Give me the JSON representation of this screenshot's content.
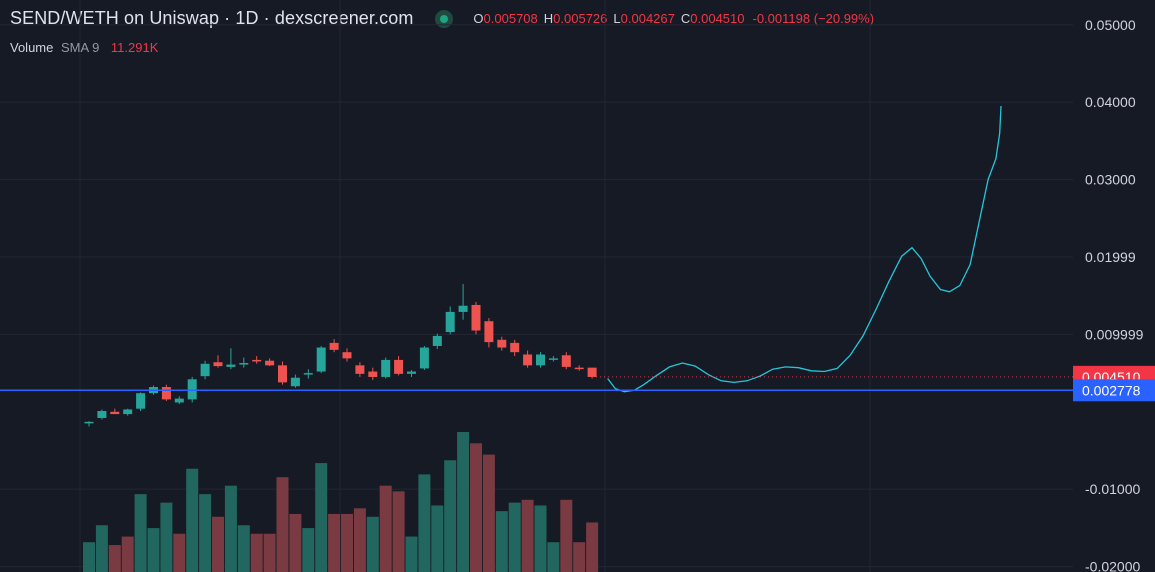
{
  "header": {
    "title": "SEND/WETH on Uniswap · 1D · dexscreener.com",
    "ohlc": {
      "open_label": "O",
      "open": "0.005708",
      "high_label": "H",
      "high": "0.005726",
      "low_label": "L",
      "low": "0.004267",
      "close_label": "C",
      "close": "0.004510",
      "change": "-0.001198 (−20.99%)"
    }
  },
  "volume_legend": {
    "title": "Volume",
    "sma": "SMA 9",
    "value": "11.291K"
  },
  "price_tags": [
    {
      "value": 0.00451,
      "label": "0.004510",
      "color": "#f23645"
    },
    {
      "value": 0.002778,
      "label": "0.002778",
      "color": "#2962ff"
    }
  ],
  "colors": {
    "background": "#161a25",
    "grid": "#232734",
    "up": "#26a69a",
    "down": "#ef5350",
    "vol_up": "#22675f",
    "vol_down": "#7a3a41",
    "line": "#26c6da",
    "blue_line": "#2962ff",
    "text": "#d1d4dc"
  },
  "chart_data": {
    "type": "candlestick",
    "title": "SEND/WETH on Uniswap · 1D · dexscreener.com",
    "y_ticks": [
      {
        "value": 0.05,
        "label": "0.05000"
      },
      {
        "value": 0.04,
        "label": "0.04000"
      },
      {
        "value": 0.03,
        "label": "0.03000"
      },
      {
        "value": 0.02,
        "label": "0.01999"
      },
      {
        "value": 0.01,
        "label": "0.009999"
      },
      {
        "value": -0.01,
        "label": "-0.01000"
      },
      {
        "value": -0.02,
        "label": "-0.02000"
      }
    ],
    "ylim": [
      -0.0207,
      0.0532
    ],
    "candles": [
      {
        "o": -0.0015,
        "h": -0.0012,
        "l": -0.0019,
        "c": -0.0013
      },
      {
        "o": -0.0008,
        "h": 0.0003,
        "l": -0.001,
        "c": 0.0001
      },
      {
        "o": 0.0,
        "h": 0.0004,
        "l": -0.0002,
        "c": -0.0003
      },
      {
        "o": -0.0003,
        "h": 0.0004,
        "l": -0.0005,
        "c": 0.0003
      },
      {
        "o": 0.0004,
        "h": 0.0025,
        "l": 0.0001,
        "c": 0.0024
      },
      {
        "o": 0.0024,
        "h": 0.0034,
        "l": 0.0022,
        "c": 0.0032
      },
      {
        "o": 0.0032,
        "h": 0.0035,
        "l": 0.0014,
        "c": 0.0016
      },
      {
        "o": 0.0012,
        "h": 0.002,
        "l": 0.001,
        "c": 0.0017
      },
      {
        "o": 0.0016,
        "h": 0.0045,
        "l": 0.0012,
        "c": 0.0042
      },
      {
        "o": 0.0046,
        "h": 0.0066,
        "l": 0.0042,
        "c": 0.0062
      },
      {
        "o": 0.0064,
        "h": 0.0073,
        "l": 0.0057,
        "c": 0.0059
      },
      {
        "o": 0.0058,
        "h": 0.0082,
        "l": 0.0055,
        "c": 0.0061
      },
      {
        "o": 0.0061,
        "h": 0.007,
        "l": 0.0057,
        "c": 0.0063
      },
      {
        "o": 0.0067,
        "h": 0.0072,
        "l": 0.0062,
        "c": 0.0065
      },
      {
        "o": 0.0066,
        "h": 0.0069,
        "l": 0.0059,
        "c": 0.006
      },
      {
        "o": 0.006,
        "h": 0.0065,
        "l": 0.0035,
        "c": 0.0038
      },
      {
        "o": 0.0033,
        "h": 0.0048,
        "l": 0.0031,
        "c": 0.0044
      },
      {
        "o": 0.0049,
        "h": 0.0055,
        "l": 0.0043,
        "c": 0.005
      },
      {
        "o": 0.0052,
        "h": 0.0085,
        "l": 0.005,
        "c": 0.0083
      },
      {
        "o": 0.0089,
        "h": 0.0094,
        "l": 0.0077,
        "c": 0.008
      },
      {
        "o": 0.0077,
        "h": 0.0082,
        "l": 0.0065,
        "c": 0.0069
      },
      {
        "o": 0.006,
        "h": 0.0064,
        "l": 0.0045,
        "c": 0.0049
      },
      {
        "o": 0.0052,
        "h": 0.0057,
        "l": 0.0041,
        "c": 0.0045
      },
      {
        "o": 0.0045,
        "h": 0.007,
        "l": 0.0043,
        "c": 0.0067
      },
      {
        "o": 0.0067,
        "h": 0.0072,
        "l": 0.0047,
        "c": 0.0049
      },
      {
        "o": 0.0049,
        "h": 0.0054,
        "l": 0.0045,
        "c": 0.0052
      },
      {
        "o": 0.0056,
        "h": 0.0085,
        "l": 0.0054,
        "c": 0.0083
      },
      {
        "o": 0.0085,
        "h": 0.0101,
        "l": 0.0081,
        "c": 0.0098
      },
      {
        "o": 0.0103,
        "h": 0.0136,
        "l": 0.01,
        "c": 0.0129
      },
      {
        "o": 0.0129,
        "h": 0.0165,
        "l": 0.0119,
        "c": 0.0137
      },
      {
        "o": 0.0138,
        "h": 0.0142,
        "l": 0.01,
        "c": 0.0105
      },
      {
        "o": 0.0117,
        "h": 0.0121,
        "l": 0.0083,
        "c": 0.009
      },
      {
        "o": 0.0093,
        "h": 0.0097,
        "l": 0.0079,
        "c": 0.0083
      },
      {
        "o": 0.0089,
        "h": 0.0093,
        "l": 0.0072,
        "c": 0.0077
      },
      {
        "o": 0.0074,
        "h": 0.0079,
        "l": 0.0057,
        "c": 0.006
      },
      {
        "o": 0.006,
        "h": 0.0077,
        "l": 0.0057,
        "c": 0.0074
      },
      {
        "o": 0.0068,
        "h": 0.0072,
        "l": 0.0065,
        "c": 0.0069
      },
      {
        "o": 0.0073,
        "h": 0.0077,
        "l": 0.0055,
        "c": 0.0058
      },
      {
        "o": 0.0057,
        "h": 0.006,
        "l": 0.0053,
        "c": 0.0056
      },
      {
        "o": 0.0057,
        "h": 0.0057,
        "l": 0.0043,
        "c": 0.0045
      }
    ],
    "volume_up": [
      true,
      true,
      false,
      false,
      true,
      true,
      true,
      false,
      true,
      true,
      false,
      true,
      true,
      false,
      false,
      false,
      false,
      true,
      true,
      false,
      false,
      false,
      true,
      false,
      false,
      true,
      true,
      true,
      true,
      true,
      false,
      false,
      true,
      true,
      false,
      true,
      true,
      false,
      false,
      false
    ],
    "line_series": {
      "name": "",
      "points": [
        [
          40.2,
          0.0043
        ],
        [
          40.8,
          0.003
        ],
        [
          41.5,
          0.0026
        ],
        [
          42.3,
          0.0028
        ],
        [
          43.0,
          0.0035
        ],
        [
          44.0,
          0.0047
        ],
        [
          45.0,
          0.0058
        ],
        [
          46.0,
          0.0063
        ],
        [
          47.0,
          0.0059
        ],
        [
          48.0,
          0.0048
        ],
        [
          49.0,
          0.004
        ],
        [
          50.0,
          0.0038
        ],
        [
          51.0,
          0.004
        ],
        [
          52.0,
          0.0046
        ],
        [
          53.0,
          0.0055
        ],
        [
          54.0,
          0.0058
        ],
        [
          55.0,
          0.0057
        ],
        [
          56.0,
          0.0053
        ],
        [
          57.0,
          0.0052
        ],
        [
          58.0,
          0.0056
        ],
        [
          59.0,
          0.0073
        ],
        [
          60.0,
          0.0098
        ],
        [
          61.0,
          0.0132
        ],
        [
          62.0,
          0.0168
        ],
        [
          63.0,
          0.0201
        ],
        [
          63.8,
          0.0212
        ],
        [
          64.5,
          0.0198
        ],
        [
          65.2,
          0.0175
        ],
        [
          66.0,
          0.0158
        ],
        [
          66.7,
          0.0155
        ],
        [
          67.5,
          0.0163
        ],
        [
          68.3,
          0.019
        ],
        [
          69.0,
          0.0245
        ],
        [
          69.7,
          0.03
        ],
        [
          70.3,
          0.0327
        ],
        [
          70.6,
          0.036
        ],
        [
          70.7,
          0.0395
        ]
      ]
    }
  }
}
